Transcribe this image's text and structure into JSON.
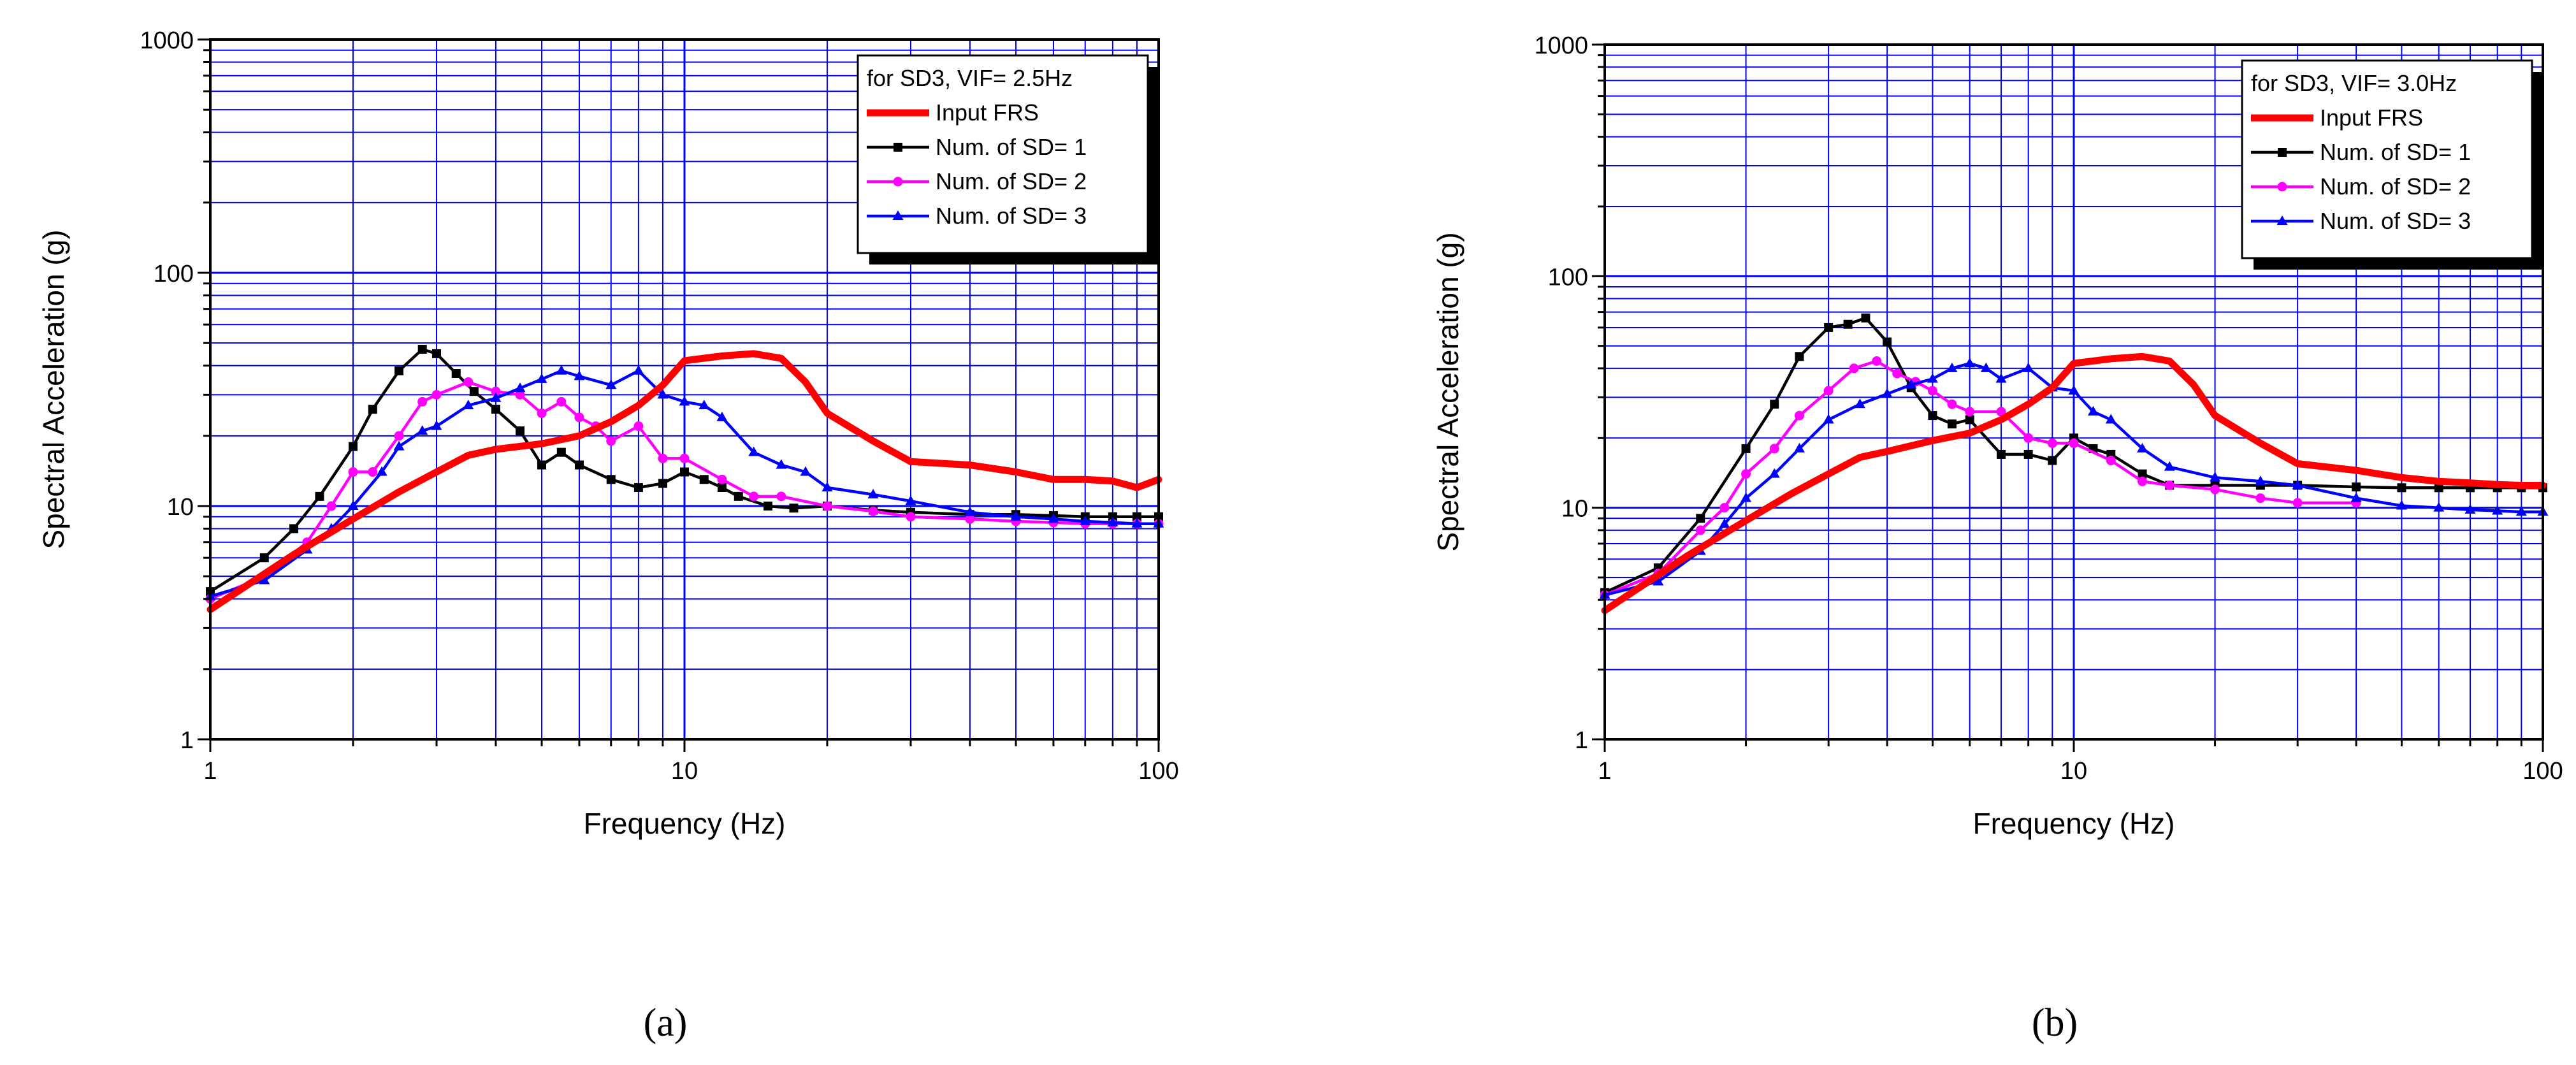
{
  "chart_data": [
    {
      "type": "line",
      "panel_label": "(a)",
      "title": "",
      "xlabel": "Frequency (Hz)",
      "ylabel": "Spectral Acceleration (g)",
      "xscale": "log",
      "yscale": "log",
      "xlim": [
        1,
        100
      ],
      "ylim": [
        1,
        1000
      ],
      "xticks": [
        "1",
        "10",
        "100"
      ],
      "yticks": [
        "1",
        "10",
        "100",
        "1000"
      ],
      "grid": true,
      "legend_position": "top-right",
      "legend_title": "for SD3, VIF= 2.5Hz",
      "series": [
        {
          "name": "Input FRS",
          "color": "#ff0000",
          "marker": "none",
          "x": [
            1,
            1.5,
            2,
            2.5,
            3,
            3.5,
            4,
            5,
            6,
            7,
            8,
            9,
            10,
            12,
            14,
            16,
            18,
            20,
            25,
            30,
            40,
            50,
            60,
            70,
            80,
            90,
            100
          ],
          "y": [
            3.6,
            6.2,
            8.8,
            11.5,
            14,
            16.5,
            17.5,
            18.5,
            20,
            23,
            27,
            33,
            42,
            44,
            45,
            43,
            34,
            25,
            19,
            15.5,
            15,
            14,
            13,
            13,
            12.8,
            12,
            13
          ]
        },
        {
          "name": "Num. of SD= 1",
          "color": "#000000",
          "marker": "square",
          "x": [
            1,
            1.3,
            1.5,
            1.7,
            2,
            2.2,
            2.5,
            2.8,
            3,
            3.3,
            3.6,
            4,
            4.5,
            5,
            5.5,
            6,
            7,
            8,
            9,
            10,
            11,
            12,
            13,
            15,
            17,
            20,
            25,
            30,
            40,
            50,
            60,
            70,
            80,
            90,
            100
          ],
          "y": [
            4.3,
            6,
            8,
            11,
            18,
            26,
            38,
            47,
            45,
            37,
            31,
            26,
            21,
            15,
            17,
            15,
            13,
            12,
            12.5,
            14,
            13,
            12,
            11,
            10,
            9.8,
            10,
            9.6,
            9.4,
            9.2,
            9.2,
            9.1,
            9,
            9,
            9,
            9
          ]
        },
        {
          "name": "Num. of SD= 2",
          "color": "#ff00ff",
          "marker": "circle",
          "x": [
            1,
            1.3,
            1.6,
            1.8,
            2,
            2.2,
            2.5,
            2.8,
            3,
            3.5,
            4,
            4.5,
            5,
            5.5,
            6,
            6.5,
            7,
            8,
            9,
            10,
            12,
            14,
            16,
            20,
            25,
            30,
            40,
            50,
            60,
            70,
            80,
            90,
            100
          ],
          "y": [
            4,
            5,
            7,
            10,
            14,
            14,
            20,
            28,
            30,
            34,
            31,
            30,
            25,
            28,
            24,
            22,
            19,
            22,
            16,
            16,
            13,
            11,
            11,
            10,
            9.5,
            9,
            8.8,
            8.6,
            8.5,
            8.4,
            8.4,
            8.4,
            8.4
          ]
        },
        {
          "name": "Num. of SD= 3",
          "color": "#0000ff",
          "marker": "triangle",
          "x": [
            1,
            1.3,
            1.6,
            1.8,
            2,
            2.3,
            2.5,
            2.8,
            3,
            3.5,
            4,
            4.5,
            5,
            5.5,
            6,
            7,
            8,
            9,
            10,
            11,
            12,
            14,
            16,
            18,
            20,
            25,
            30,
            40,
            50,
            60,
            70,
            80,
            90,
            100
          ],
          "y": [
            4.1,
            4.8,
            6.5,
            8,
            10,
            14,
            18,
            21,
            22,
            27,
            29,
            32,
            35,
            38,
            36,
            33,
            38,
            30,
            28,
            27,
            24,
            17,
            15,
            14,
            12,
            11.2,
            10.5,
            9.4,
            9,
            8.8,
            8.6,
            8.5,
            8.4,
            8.4
          ]
        }
      ]
    },
    {
      "type": "line",
      "panel_label": "(b)",
      "title": "",
      "xlabel": "Frequency (Hz)",
      "ylabel": "Spectral Acceleration (g)",
      "xscale": "log",
      "yscale": "log",
      "xlim": [
        1,
        100
      ],
      "ylim": [
        1,
        1000
      ],
      "xticks": [
        "1",
        "10",
        "100"
      ],
      "yticks": [
        "1",
        "10",
        "100",
        "1000"
      ],
      "grid": true,
      "legend_position": "top-right",
      "legend_title": "for SD3, VIF= 3.0Hz",
      "series": [
        {
          "name": "Input FRS",
          "color": "#ff0000",
          "marker": "none",
          "x": [
            1,
            1.5,
            2,
            2.5,
            3,
            3.5,
            4,
            5,
            6,
            7,
            8,
            9,
            10,
            12,
            14,
            16,
            18,
            20,
            25,
            30,
            40,
            50,
            60,
            70,
            80,
            90,
            100
          ],
          "y": [
            3.6,
            6.2,
            8.8,
            11.5,
            14,
            16.5,
            17.5,
            19.5,
            21,
            24,
            28,
            33,
            42,
            44,
            45,
            43,
            34,
            25,
            19,
            15.5,
            14.5,
            13.5,
            13,
            12.8,
            12.6,
            12.5,
            12.5
          ]
        },
        {
          "name": "Num. of SD= 1",
          "color": "#000000",
          "marker": "square",
          "x": [
            1,
            1.3,
            1.6,
            2,
            2.3,
            2.6,
            3,
            3.3,
            3.6,
            4,
            4.5,
            5,
            5.5,
            6,
            7,
            8,
            9,
            10,
            11,
            12,
            14,
            16,
            20,
            25,
            30,
            40,
            50,
            60,
            70,
            80,
            90,
            100
          ],
          "y": [
            4.3,
            5.5,
            9,
            18,
            28,
            45,
            60,
            62,
            66,
            52,
            33,
            25,
            23,
            24,
            17,
            17,
            16,
            20,
            18,
            17,
            14,
            12.5,
            12.5,
            12.5,
            12.5,
            12.3,
            12.2,
            12.2,
            12.2,
            12.2,
            12.2,
            12.2
          ]
        },
        {
          "name": "Num. of SD= 2",
          "color": "#ff00ff",
          "marker": "circle",
          "x": [
            1,
            1.3,
            1.6,
            1.8,
            2,
            2.3,
            2.6,
            3,
            3.4,
            3.8,
            4.2,
            4.6,
            5,
            5.5,
            6,
            7,
            8,
            9,
            10,
            12,
            14,
            16,
            20,
            25,
            30,
            40
          ],
          "y": [
            4.2,
            5.2,
            8,
            10,
            14,
            18,
            25,
            32,
            40,
            43,
            38,
            35,
            32,
            28,
            26,
            26,
            20,
            19,
            19,
            16,
            13,
            12.5,
            12,
            11,
            10.5,
            10.5
          ]
        },
        {
          "name": "Num. of SD= 3",
          "color": "#0000ff",
          "marker": "triangle",
          "x": [
            1,
            1.3,
            1.6,
            1.8,
            2,
            2.3,
            2.6,
            3,
            3.5,
            4,
            4.5,
            5,
            5.5,
            6,
            6.5,
            7,
            8,
            9,
            10,
            11,
            12,
            14,
            16,
            20,
            25,
            30,
            40,
            50,
            60,
            70,
            80,
            90,
            100
          ],
          "y": [
            4.2,
            4.8,
            6.5,
            8.5,
            11,
            14,
            18,
            24,
            28,
            31,
            34,
            36,
            40,
            42,
            40,
            36,
            40,
            33,
            32,
            26,
            24,
            18,
            15,
            13.5,
            13,
            12.5,
            11,
            10.2,
            10,
            9.8,
            9.7,
            9.6,
            9.6
          ]
        }
      ]
    }
  ]
}
